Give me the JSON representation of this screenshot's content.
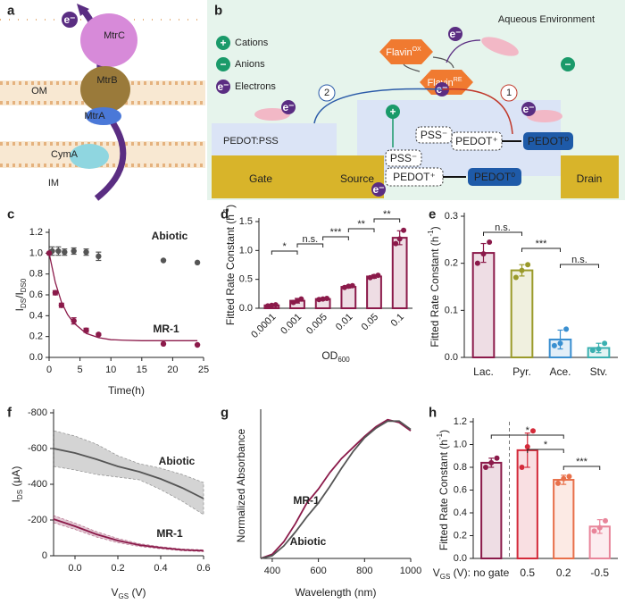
{
  "figure_a": {
    "panel": "a",
    "electron": "e⁻",
    "proteins": [
      "MtrC",
      "MtrB",
      "MtrA",
      "CymA"
    ],
    "membranes": [
      "OM",
      "IM"
    ]
  },
  "figure_b": {
    "panel": "b",
    "environment": "Aqueous Environment",
    "legend": [
      "Cations",
      "Anions",
      "Electrons"
    ],
    "symbols": {
      "plus": "+",
      "minus": "−",
      "electron": "e⁻"
    },
    "flavin": "Flavin",
    "flavin_ox": "OX",
    "flavin_re": "RE",
    "gate_material": "PEDOT:PSS",
    "electrodes": [
      "Gate",
      "Source",
      "Drain"
    ],
    "pss": "PSS⁻",
    "pedot_plus": "PEDOT⁺",
    "pedot_zero": "PEDOT⁰",
    "pathways": [
      "1",
      "2"
    ]
  },
  "chart_data": [
    {
      "panel": "c",
      "type": "scatter",
      "xlabel": "Time(h)",
      "ylabel": [
        {
          "text": "I"
        },
        {
          "text": "DS",
          "sub": true
        },
        {
          "text": "/I"
        },
        {
          "text": "DS0",
          "sub": true
        }
      ],
      "xlim": [
        0,
        25
      ],
      "xticks": [
        0,
        5,
        10,
        15,
        20,
        25
      ],
      "ylim": [
        0,
        1.2
      ],
      "yticks": [
        {
          "value": 0,
          "label": "0.0"
        },
        0.2,
        0.4,
        0.6,
        0.8,
        {
          "value": 1,
          "label": "1.0"
        },
        1.2
      ],
      "series": [
        {
          "name": "Abiotic",
          "color": "#555555",
          "x": [
            0.5,
            1.5,
            2.5,
            4,
            6,
            8,
            18.5,
            24
          ],
          "values": [
            1.02,
            1.02,
            1.01,
            1.02,
            1.01,
            0.97,
            0.93,
            0.91
          ],
          "errors": [
            0.04,
            0.04,
            0.03,
            0.03,
            0.03,
            0.04,
            0,
            0
          ]
        },
        {
          "name": "MR-1",
          "color": "#8b1a4a",
          "x": [
            0,
            1,
            2,
            4,
            6,
            8,
            18.5,
            24
          ],
          "values": [
            1.0,
            0.62,
            0.5,
            0.35,
            0.26,
            0.22,
            0.13,
            0.12
          ],
          "errors": [
            0,
            0.02,
            0.02,
            0.03,
            0.02,
            0.01,
            0,
            0
          ],
          "fit": {
            "x": [
              0,
              1,
              2,
              3,
              4,
              6,
              8,
              10,
              12,
              15,
              18,
              21,
              24
            ],
            "values": [
              1.0,
              0.72,
              0.53,
              0.41,
              0.33,
              0.23,
              0.19,
              0.17,
              0.165,
              0.16,
              0.16,
              0.16,
              0.16
            ]
          }
        }
      ]
    },
    {
      "panel": "d",
      "type": "bar",
      "xlabel": [
        {
          "text": "OD"
        },
        {
          "text": "600",
          "sub": true
        }
      ],
      "ylabel": [
        {
          "text": "Fitted Rate Constant (h"
        },
        {
          "text": "-1",
          "sup": true
        },
        {
          "text": ")"
        }
      ],
      "categories": [
        "0.0001",
        "0.001",
        "0.005",
        "0.01",
        "0.05",
        "0.1"
      ],
      "values": [
        0.05,
        0.13,
        0.16,
        0.37,
        0.55,
        1.22
      ],
      "errors": [
        0.01,
        0.04,
        0.02,
        0.02,
        0.03,
        0.12
      ],
      "points": [
        [
          0.04,
          0.05,
          0.06
        ],
        [
          0.1,
          0.13,
          0.16
        ],
        [
          0.15,
          0.16,
          0.17
        ],
        [
          0.36,
          0.38,
          0.39
        ],
        [
          0.53,
          0.55,
          0.57
        ],
        [
          1.12,
          1.2,
          1.35
        ]
      ],
      "colors": [
        "#8b1a4a",
        "#8b1a4a",
        "#8b1a4a",
        "#8b1a4a",
        "#8b1a4a",
        "#8b1a4a"
      ],
      "ylim": [
        0,
        1.5
      ],
      "yticks": [
        {
          "value": 0,
          "label": "0.0"
        },
        0.5,
        {
          "value": 1,
          "label": "1.0"
        },
        1.5
      ],
      "significance": [
        {
          "between": [
            0,
            1
          ],
          "label": "*"
        },
        {
          "between": [
            1,
            2
          ],
          "label": "n.s."
        },
        {
          "between": [
            2,
            3
          ],
          "label": "***"
        },
        {
          "between": [
            3,
            4
          ],
          "label": "**"
        },
        {
          "between": [
            4,
            5
          ],
          "label": "**"
        }
      ]
    },
    {
      "panel": "e",
      "type": "bar",
      "ylabel": [
        {
          "text": "Fitted Rate Constant (h"
        },
        {
          "text": "-1",
          "sup": true
        },
        {
          "text": ")"
        }
      ],
      "categories": [
        "Lac.",
        "Pyr.",
        "Ace.",
        "Stv."
      ],
      "values": [
        0.222,
        0.185,
        0.038,
        0.02
      ],
      "errors": [
        0.02,
        0.012,
        0.02,
        0.01
      ],
      "points": [
        [
          0.2,
          0.22,
          0.245
        ],
        [
          0.17,
          0.185,
          0.197
        ],
        [
          0.025,
          0.03,
          0.06
        ],
        [
          0.015,
          0.018,
          0.03
        ]
      ],
      "colors": [
        "#8b1a4a",
        "#9a9a2a",
        "#3a8fd0",
        "#3ab0b0"
      ],
      "ylim": [
        0,
        0.3
      ],
      "yticks": [
        {
          "value": 0,
          "label": "0.0"
        },
        0.1,
        0.2,
        0.3
      ],
      "significance": [
        {
          "between": [
            0,
            1
          ],
          "label": "n.s."
        },
        {
          "between": [
            1,
            2
          ],
          "label": "***"
        },
        {
          "between": [
            2,
            3
          ],
          "label": "n.s."
        }
      ]
    },
    {
      "panel": "f",
      "type": "line",
      "xlabel": [
        {
          "text": "V"
        },
        {
          "text": "GS",
          "sub": true
        },
        {
          "text": " (V)"
        }
      ],
      "ylabel": [
        {
          "text": "I"
        },
        {
          "text": "DS",
          "sub": true
        },
        {
          "text": " (μA)"
        }
      ],
      "xlim": [
        -0.1,
        0.6
      ],
      "xticks": [
        {
          "value": 0,
          "label": "0.0"
        },
        0.2,
        0.4,
        0.6
      ],
      "ylim": [
        0,
        -800
      ],
      "yticks": [
        0,
        -200,
        -400,
        -600,
        -800
      ],
      "series": [
        {
          "name": "Abiotic",
          "color": "#555555",
          "x": [
            -0.1,
            0,
            0.1,
            0.2,
            0.3,
            0.4,
            0.5,
            0.6
          ],
          "values": [
            -600,
            -575,
            -540,
            -500,
            -470,
            -430,
            -380,
            -320
          ],
          "errors": [
            100,
            95,
            85,
            60,
            45,
            60,
            75,
            90
          ]
        },
        {
          "name": "MR-1",
          "color": "#8b1a4a",
          "x": [
            -0.1,
            0,
            0.1,
            0.2,
            0.3,
            0.4,
            0.5,
            0.6
          ],
          "values": [
            -205,
            -165,
            -120,
            -85,
            -60,
            -45,
            -33,
            -28
          ],
          "errors": [
            20,
            18,
            15,
            12,
            8,
            6,
            5,
            5
          ]
        }
      ]
    },
    {
      "panel": "g",
      "type": "line",
      "xlabel": "Wavelength (nm)",
      "ylabel": "Normalized Absorbance",
      "xlim": [
        350,
        1000
      ],
      "xticks": [
        400,
        600,
        800,
        1000
      ],
      "ylim": [
        0,
        1.05
      ],
      "series": [
        {
          "name": "MR-1",
          "color": "#8b1a4a",
          "x": [
            350,
            400,
            450,
            500,
            550,
            600,
            650,
            700,
            750,
            800,
            850,
            900,
            950,
            1000
          ],
          "values": [
            0.0,
            0.03,
            0.12,
            0.25,
            0.4,
            0.5,
            0.62,
            0.72,
            0.8,
            0.88,
            0.95,
            1.0,
            0.98,
            0.92
          ]
        },
        {
          "name": "Abiotic",
          "color": "#555555",
          "x": [
            350,
            400,
            450,
            500,
            550,
            600,
            650,
            700,
            750,
            800,
            850,
            900,
            950,
            1000
          ],
          "values": [
            0.0,
            0.02,
            0.09,
            0.19,
            0.3,
            0.4,
            0.52,
            0.65,
            0.77,
            0.87,
            0.94,
            0.99,
            0.99,
            0.93
          ]
        }
      ]
    },
    {
      "panel": "h",
      "type": "bar",
      "ylabel": [
        {
          "text": "Fitted Rate Constant (h"
        },
        {
          "text": "-1",
          "sup": true
        },
        {
          "text": ")"
        }
      ],
      "xprefix": [
        {
          "text": "V"
        },
        {
          "text": "GS",
          "sub": true
        },
        {
          "text": " (V):"
        }
      ],
      "categories": [
        "no gate",
        "0.5",
        "0.2",
        "-0.5"
      ],
      "values": [
        0.84,
        0.95,
        0.69,
        0.28
      ],
      "errors": [
        0.04,
        0.15,
        0.04,
        0.06
      ],
      "points": [
        [
          0.8,
          0.84,
          0.88
        ],
        [
          0.8,
          0.98,
          1.12
        ],
        [
          0.66,
          0.7,
          0.72
        ],
        [
          0.24,
          0.27,
          0.33
        ]
      ],
      "colors": [
        "#8b1a4a",
        "#d42a3a",
        "#e8704a",
        "#e8859a"
      ],
      "ylim": [
        0,
        1.2
      ],
      "yticks": [
        {
          "value": 0,
          "label": "0.0"
        },
        0.2,
        0.4,
        0.6,
        0.8,
        {
          "value": 1,
          "label": "1.0"
        },
        1.2
      ],
      "significance": [
        {
          "between": [
            0,
            2
          ],
          "label": "*"
        },
        {
          "between": [
            1,
            2
          ],
          "label": "*"
        },
        {
          "between": [
            2,
            3
          ],
          "label": "***"
        }
      ]
    }
  ]
}
